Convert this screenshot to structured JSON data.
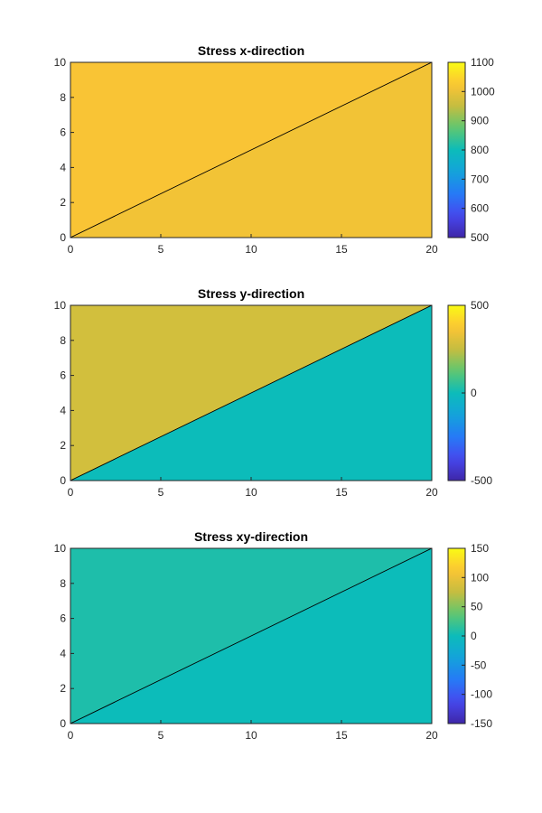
{
  "chart_data": [
    {
      "type": "heatmap",
      "title": "Stress x-direction",
      "xlim": [
        0,
        20
      ],
      "ylim": [
        0,
        10
      ],
      "xticks": [
        "0",
        "5",
        "10",
        "15",
        "20"
      ],
      "yticks": [
        "0",
        "2",
        "4",
        "6",
        "8",
        "10"
      ],
      "elements": [
        {
          "vertices": [
            [
              0,
              0
            ],
            [
              20,
              10
            ],
            [
              0,
              10
            ]
          ],
          "value": 1020
        },
        {
          "vertices": [
            [
              0,
              0
            ],
            [
              20,
              0
            ],
            [
              20,
              10
            ]
          ],
          "value": 1010
        }
      ],
      "colorbar": {
        "limits": [
          500,
          1100
        ],
        "ticks": [
          "500",
          "600",
          "700",
          "800",
          "900",
          "1000",
          "1100"
        ]
      }
    },
    {
      "type": "heatmap",
      "title": "Stress y-direction",
      "xlim": [
        0,
        20
      ],
      "ylim": [
        0,
        10
      ],
      "xticks": [
        "0",
        "5",
        "10",
        "15",
        "20"
      ],
      "yticks": [
        "0",
        "2",
        "4",
        "6",
        "8",
        "10"
      ],
      "elements": [
        {
          "vertices": [
            [
              0,
              0
            ],
            [
              20,
              10
            ],
            [
              0,
              10
            ]
          ],
          "value": 280
        },
        {
          "vertices": [
            [
              0,
              0
            ],
            [
              20,
              0
            ],
            [
              20,
              10
            ]
          ],
          "value": 0
        }
      ],
      "colorbar": {
        "limits": [
          -500,
          500
        ],
        "ticks": [
          "-500",
          "0",
          "500"
        ]
      }
    },
    {
      "type": "heatmap",
      "title": "Stress xy-direction",
      "xlim": [
        0,
        20
      ],
      "ylim": [
        0,
        10
      ],
      "xticks": [
        "0",
        "5",
        "10",
        "15",
        "20"
      ],
      "yticks": [
        "0",
        "2",
        "4",
        "6",
        "8",
        "10"
      ],
      "elements": [
        {
          "vertices": [
            [
              0,
              0
            ],
            [
              20,
              10
            ],
            [
              0,
              10
            ]
          ],
          "value": 8
        },
        {
          "vertices": [
            [
              0,
              0
            ],
            [
              20,
              0
            ],
            [
              20,
              10
            ]
          ],
          "value": 0
        }
      ],
      "colorbar": {
        "limits": [
          -150,
          150
        ],
        "ticks": [
          "-150",
          "-100",
          "-50",
          "0",
          "50",
          "100",
          "150"
        ]
      }
    }
  ],
  "colormap": "parula"
}
